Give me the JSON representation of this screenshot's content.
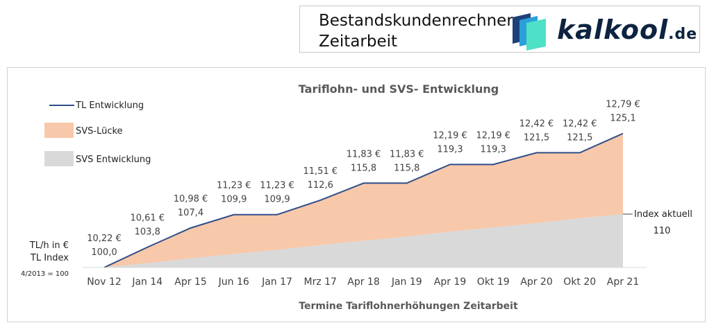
{
  "header": {
    "title_line1": "Bestandskundenrechner",
    "title_line2": "Zeitarbeit",
    "logo_name": "kalkool",
    "logo_tld": ".de",
    "logo_icon": "stacked-squares-icon"
  },
  "chart_data": {
    "type": "area",
    "title": "Tariflohn- und SVS- Entwicklung",
    "xlabel": "Termine Tariflohnerhöhungen Zeitarbeit",
    "y_axis_note": [
      "TL/h in €",
      "TL Index",
      "4/2013 = 100"
    ],
    "categories": [
      "Nov 12",
      "Jan 14",
      "Apr 15",
      "Jun 16",
      "Jan 17",
      "Mrz 17",
      "Apr 18",
      "Jan 19",
      "Apr 19",
      "Okt 19",
      "Apr 20",
      "Okt 20",
      "Apr 21"
    ],
    "legend": [
      "TL Entwicklung",
      "SVS-Lücke",
      "SVS Entwicklung"
    ],
    "legend_position": "left",
    "series": [
      {
        "name": "TL Entwicklung",
        "values": [
          100.0,
          103.8,
          107.4,
          109.9,
          109.9,
          112.6,
          115.8,
          115.8,
          119.3,
          119.3,
          121.5,
          121.5,
          125.1
        ],
        "color": "#2f4e8a"
      },
      {
        "name": "SVS Entwicklung",
        "values": [
          100.0,
          100.8,
          101.7,
          102.5,
          103.3,
          104.2,
          105.0,
          105.8,
          106.7,
          107.5,
          108.3,
          109.2,
          110.0
        ],
        "color": "#d9d9d9"
      }
    ],
    "gap_color": "#f7c8aa",
    "wage_labels": [
      "10,22 €",
      "10,61 €",
      "10,98 €",
      "11,23 €",
      "11,23 €",
      "11,51 €",
      "11,83 €",
      "11,83 €",
      "12,19 €",
      "12,19 €",
      "12,42 €",
      "12,42 €",
      "12,79 €"
    ],
    "index_labels": [
      "100,0",
      "103,8",
      "107,4",
      "109,9",
      "109,9",
      "112,6",
      "115,8",
      "115,8",
      "119,3",
      "119,3",
      "121,5",
      "121,5",
      "125,1"
    ],
    "annotation": {
      "label": "Index aktuell",
      "value": "110"
    },
    "ylim": [
      100,
      127
    ],
    "grid": false
  }
}
